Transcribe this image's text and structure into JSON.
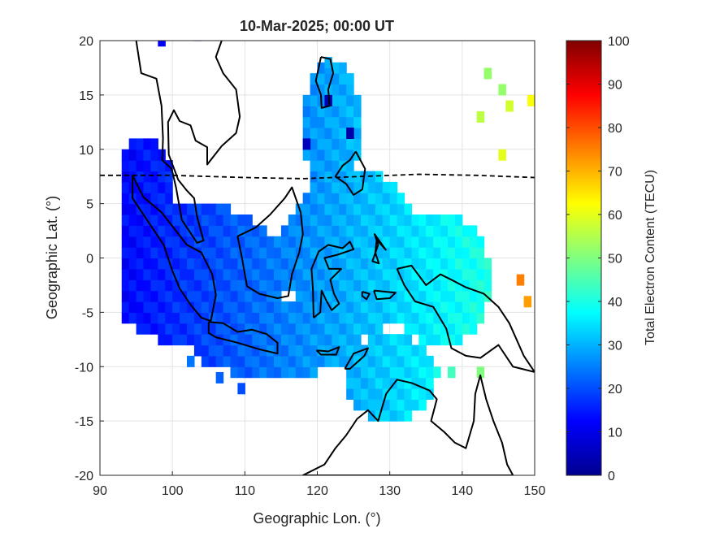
{
  "title": "10-Mar-2025; 00:00 UT",
  "chart_data": {
    "type": "heatmap",
    "title": "10-Mar-2025; 00:00 UT",
    "xlabel": "Geographic Lon. (°)",
    "ylabel": "Geographic Lat. (°)",
    "xlim": [
      90,
      150
    ],
    "ylim": [
      -20,
      20
    ],
    "xticks": [
      "90",
      "100",
      "110",
      "120",
      "130",
      "140",
      "150"
    ],
    "yticks": [
      "20",
      "15",
      "10",
      "5",
      "0",
      "-5",
      "-10",
      "-15",
      "-20"
    ],
    "grid": true,
    "colorbar": {
      "label": "Total Electron Content (TECU)",
      "range": [
        0,
        100
      ],
      "ticks": [
        "0",
        "10",
        "20",
        "30",
        "40",
        "50",
        "60",
        "70",
        "80",
        "90",
        "100"
      ],
      "colormap": "jet"
    },
    "dip_equator": [
      [
        90,
        7.6
      ],
      [
        100,
        7.6
      ],
      [
        110,
        7.4
      ],
      [
        118,
        7.3
      ],
      [
        126,
        7.5
      ],
      [
        134,
        7.7
      ],
      [
        142,
        7.6
      ],
      [
        150,
        7.4
      ]
    ],
    "coastlines": [
      [
        [
          94.5,
          7.6
        ],
        [
          96,
          5.6
        ],
        [
          98.5,
          4.2
        ],
        [
          100.5,
          2.5
        ],
        [
          102,
          1.2
        ],
        [
          104,
          0.5
        ],
        [
          105.5,
          -1.5
        ],
        [
          106,
          -3.4
        ],
        [
          105.3,
          -5.8
        ],
        [
          104,
          -5.5
        ],
        [
          102.5,
          -4.3
        ],
        [
          101,
          -2.8
        ],
        [
          100,
          -1.2
        ],
        [
          98.8,
          1.2
        ],
        [
          97.2,
          2.8
        ],
        [
          95.6,
          4.4
        ],
        [
          94.5,
          5.5
        ],
        [
          94.5,
          7.6
        ]
      ],
      [
        [
          105,
          -5.9
        ],
        [
          107,
          -6
        ],
        [
          109,
          -6.8
        ],
        [
          111,
          -6.6
        ],
        [
          113,
          -7
        ],
        [
          114.5,
          -7.8
        ],
        [
          114.5,
          -8.8
        ],
        [
          112,
          -8.4
        ],
        [
          109,
          -7.8
        ],
        [
          106,
          -7.3
        ],
        [
          105,
          -6.9
        ],
        [
          105,
          -5.9
        ]
      ],
      [
        [
          109,
          2
        ],
        [
          109.6,
          0
        ],
        [
          110.3,
          -2.6
        ],
        [
          112,
          -3.3
        ],
        [
          114.5,
          -3.7
        ],
        [
          116,
          -3.5
        ],
        [
          116.5,
          -1.5
        ],
        [
          117.5,
          0.5
        ],
        [
          118,
          2.2
        ],
        [
          117.7,
          4.2
        ],
        [
          116.5,
          6.5
        ],
        [
          115.5,
          5.5
        ],
        [
          113.5,
          4
        ],
        [
          111.5,
          2.8
        ],
        [
          109,
          2
        ]
      ],
      [
        [
          119.5,
          -5.5
        ],
        [
          119.4,
          -3
        ],
        [
          119.2,
          -1
        ],
        [
          120.2,
          0.6
        ],
        [
          121.5,
          1.2
        ],
        [
          123.5,
          0.9
        ],
        [
          124.5,
          1.5
        ],
        [
          125,
          0.8
        ],
        [
          122.8,
          0.3
        ],
        [
          121,
          0
        ],
        [
          121.6,
          -1
        ],
        [
          123.3,
          -1
        ],
        [
          121.8,
          -2
        ],
        [
          122.3,
          -3.3
        ],
        [
          123,
          -4.2
        ],
        [
          122,
          -4.8
        ],
        [
          121.3,
          -4
        ],
        [
          120.6,
          -3
        ],
        [
          120.4,
          -5
        ],
        [
          119.5,
          -5.5
        ]
      ],
      [
        [
          131,
          -1
        ],
        [
          133,
          -0.7
        ],
        [
          135,
          -2.5
        ],
        [
          137,
          -1.5
        ],
        [
          138.5,
          -2
        ],
        [
          140.5,
          -2.7
        ],
        [
          143,
          -3.3
        ],
        [
          145,
          -4.5
        ],
        [
          146.5,
          -6
        ],
        [
          147.5,
          -7.5
        ],
        [
          148.5,
          -9
        ],
        [
          150,
          -10.5
        ],
        [
          147,
          -10
        ],
        [
          145,
          -8
        ],
        [
          142.5,
          -9.2
        ],
        [
          140.5,
          -9
        ],
        [
          138.5,
          -8.3
        ],
        [
          137.8,
          -6.5
        ],
        [
          136,
          -4.5
        ],
        [
          133.5,
          -4
        ],
        [
          132,
          -2.5
        ],
        [
          131,
          -1
        ]
      ],
      [
        [
          129.5,
          -12.5
        ],
        [
          131,
          -11.2
        ],
        [
          133,
          -11.5
        ],
        [
          135.5,
          -12.2
        ],
        [
          136.5,
          -13
        ],
        [
          135.7,
          -15
        ],
        [
          137.5,
          -16
        ],
        [
          139,
          -17
        ],
        [
          140.5,
          -17.5
        ],
        [
          141.6,
          -15
        ],
        [
          141.8,
          -12.5
        ],
        [
          142.5,
          -10.8
        ],
        [
          143.3,
          -13
        ],
        [
          144.3,
          -15
        ],
        [
          145.5,
          -17
        ],
        [
          146.2,
          -19
        ],
        [
          147,
          -20
        ],
        [
          118,
          -20
        ],
        [
          121,
          -19
        ],
        [
          122.5,
          -17.5
        ],
        [
          124,
          -16.3
        ],
        [
          125.5,
          -14.8
        ],
        [
          127,
          -14
        ],
        [
          128.4,
          -15
        ],
        [
          129.5,
          -12.5
        ]
      ],
      [
        [
          120.5,
          18.5
        ],
        [
          121.8,
          18.3
        ],
        [
          122.2,
          17
        ],
        [
          121.5,
          15.5
        ],
        [
          121.7,
          14
        ],
        [
          120.6,
          13.8
        ],
        [
          120.5,
          15
        ],
        [
          119.8,
          16.3
        ],
        [
          120.5,
          18.5
        ]
      ],
      [
        [
          125.3,
          9.8
        ],
        [
          126.6,
          8.2
        ],
        [
          126.2,
          6.3
        ],
        [
          125,
          5.8
        ],
        [
          124,
          6.8
        ],
        [
          122.5,
          7.5
        ],
        [
          123.5,
          8.5
        ],
        [
          124.5,
          9
        ],
        [
          125.3,
          9.8
        ]
      ],
      [
        [
          95,
          20
        ],
        [
          95.7,
          17
        ],
        [
          97.8,
          16.5
        ],
        [
          98.5,
          14
        ],
        [
          98.7,
          11
        ],
        [
          98.6,
          9
        ],
        [
          99.9,
          8.2
        ],
        [
          100.5,
          6.5
        ],
        [
          101.3,
          3.5
        ],
        [
          103.4,
          1.4
        ],
        [
          104.3,
          1.6
        ],
        [
          103.4,
          3.8
        ],
        [
          103,
          5.5
        ],
        [
          102,
          6.2
        ],
        [
          100.8,
          7.2
        ],
        [
          99.5,
          9.5
        ],
        [
          99.4,
          12.5
        ],
        [
          100.2,
          13.6
        ],
        [
          101,
          12.6
        ],
        [
          102.5,
          12.2
        ],
        [
          103.2,
          10.8
        ],
        [
          104.8,
          10.2
        ],
        [
          104.8,
          8.6
        ],
        [
          106.8,
          10.3
        ],
        [
          108.8,
          11.5
        ],
        [
          109.3,
          13
        ],
        [
          108.8,
          15.5
        ],
        [
          107,
          17
        ],
        [
          106,
          18.5
        ],
        [
          106.8,
          20
        ]
      ],
      [
        [
          119.9,
          -8.5
        ],
        [
          121.5,
          -8.6
        ],
        [
          123,
          -8.2
        ],
        [
          122.6,
          -8.9
        ],
        [
          120.5,
          -8.9
        ],
        [
          119.9,
          -8.5
        ]
      ],
      [
        [
          123.8,
          -10.2
        ],
        [
          125,
          -8.8
        ],
        [
          127,
          -8.3
        ],
        [
          126.5,
          -9
        ],
        [
          124.5,
          -10.2
        ],
        [
          123.8,
          -10.2
        ]
      ],
      [
        [
          129.5,
          0.7
        ],
        [
          128.2,
          1.7
        ],
        [
          128,
          0.5
        ],
        [
          128.5,
          -0.5
        ],
        [
          127.6,
          -0.3
        ],
        [
          128.4,
          1.2
        ],
        [
          127.9,
          2.2
        ],
        [
          129.5,
          0.7
        ]
      ],
      [
        [
          127.8,
          -3
        ],
        [
          130.8,
          -3.2
        ],
        [
          130,
          -3.7
        ],
        [
          128.2,
          -3.8
        ],
        [
          127.8,
          -3
        ]
      ],
      [
        [
          126.2,
          -3.1
        ],
        [
          127.2,
          -3.3
        ],
        [
          126.8,
          -3.8
        ],
        [
          126.2,
          -3.5
        ],
        [
          126.2,
          -3.1
        ]
      ]
    ]
  }
}
